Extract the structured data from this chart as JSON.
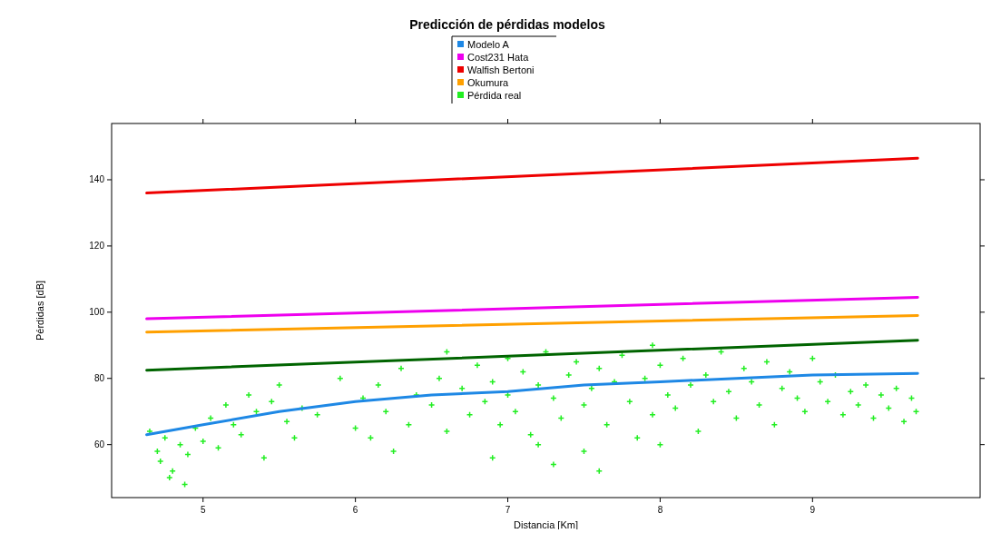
{
  "chart_data": {
    "type": "line",
    "title": "Predicción de pérdidas modelos",
    "xlabel": "Distancia [Km]",
    "ylabel": "Pérdidas [dB]",
    "xlim": [
      4.4,
      10.1
    ],
    "xticks": [
      5,
      6,
      7,
      8,
      9
    ],
    "ylim": [
      44,
      157
    ],
    "yticks": [
      60,
      80,
      100,
      120,
      140
    ],
    "legend": "top",
    "grid": false,
    "marker": "none",
    "line_style": "solid",
    "series": [
      {
        "name": "Modelo A",
        "color": "#1e88e5",
        "x": [
          4.63,
          5.0,
          5.5,
          6.0,
          6.5,
          7.0,
          7.5,
          8.0,
          8.5,
          9.0,
          9.69
        ],
        "values": [
          63,
          66,
          70,
          73,
          75,
          76,
          78,
          79,
          80,
          81,
          81.5
        ]
      },
      {
        "name": "Cost231 Hata",
        "color": "#ee00ee",
        "x": [
          4.63,
          9.69
        ],
        "values": [
          98,
          104.5
        ]
      },
      {
        "color": "#006400",
        "x": [
          4.63,
          9.69
        ],
        "values": [
          82.5,
          91.5
        ]
      },
      {
        "name": "Walfish Bertoni",
        "color": "#ee0000",
        "x": [
          4.63,
          9.69
        ],
        "values": [
          136,
          146.5
        ]
      },
      {
        "name": "Okumura",
        "color": "#ffa000",
        "x": [
          4.63,
          9.69
        ],
        "values": [
          94,
          99
        ]
      },
      {
        "name": "Pérdida real",
        "type": "scatter",
        "marker": "cross",
        "color": "#22ee22",
        "x": [
          4.65,
          4.7,
          4.72,
          4.75,
          4.8,
          4.85,
          4.9,
          4.95,
          5.0,
          4.78,
          4.88,
          5.05,
          5.1,
          5.15,
          5.2,
          5.25,
          5.3,
          5.35,
          5.4,
          5.45,
          5.5,
          5.55,
          5.6,
          5.65,
          5.75,
          5.9,
          6.0,
          6.05,
          6.1,
          6.15,
          6.2,
          6.3,
          6.35,
          6.4,
          6.5,
          6.55,
          6.6,
          6.7,
          6.75,
          6.8,
          6.85,
          6.9,
          6.95,
          7.0,
          7.0,
          7.05,
          7.1,
          7.15,
          7.2,
          7.25,
          7.3,
          7.35,
          7.4,
          7.45,
          7.5,
          7.5,
          7.55,
          7.6,
          7.65,
          7.7,
          7.75,
          7.8,
          7.85,
          7.9,
          7.95,
          8.0,
          8.05,
          8.1,
          8.15,
          8.2,
          8.25,
          8.3,
          8.35,
          8.4,
          8.45,
          8.5,
          8.55,
          8.6,
          8.65,
          8.7,
          8.75,
          8.8,
          8.85,
          8.9,
          8.95,
          9.0,
          9.05,
          9.1,
          9.15,
          9.2,
          9.25,
          9.3,
          9.35,
          9.4,
          9.45,
          9.5,
          9.55,
          9.6,
          9.65,
          9.68,
          6.25,
          6.9,
          7.3,
          7.6,
          7.2,
          8.0,
          7.95,
          6.6
        ],
        "values": [
          64,
          58,
          55,
          62,
          52,
          60,
          57,
          65,
          61,
          50,
          48,
          68,
          59,
          72,
          66,
          63,
          75,
          70,
          56,
          73,
          78,
          67,
          62,
          71,
          69,
          80,
          65,
          74,
          62,
          78,
          70,
          83,
          66,
          75,
          72,
          80,
          64,
          77,
          69,
          84,
          73,
          79,
          66,
          86,
          75,
          70,
          82,
          63,
          78,
          88,
          74,
          68,
          81,
          85,
          72,
          58,
          77,
          83,
          66,
          79,
          87,
          73,
          62,
          80,
          69,
          84,
          75,
          71,
          86,
          78,
          64,
          81,
          73,
          88,
          76,
          68,
          83,
          79,
          72,
          85,
          66,
          77,
          82,
          74,
          70,
          86,
          79,
          73,
          81,
          69,
          76,
          72,
          78,
          68,
          75,
          71,
          77,
          67,
          74,
          70,
          58,
          56,
          54,
          52,
          60,
          60,
          90,
          88
        ]
      }
    ]
  }
}
